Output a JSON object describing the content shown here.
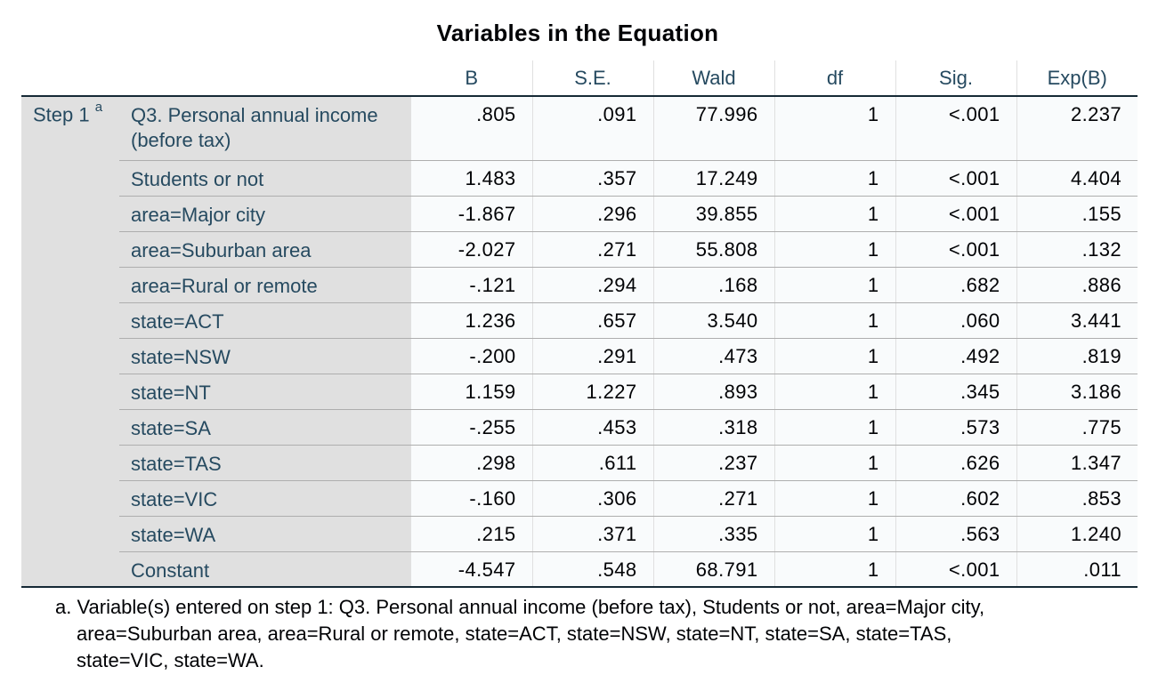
{
  "title": "Variables in the Equation",
  "columns": [
    "B",
    "S.E.",
    "Wald",
    "df",
    "Sig.",
    "Exp(B)"
  ],
  "step_label": "Step 1",
  "step_superscript": "a",
  "rows": [
    {
      "label": "Q3. Personal annual income (before tax)",
      "values": [
        ".805",
        ".091",
        "77.996",
        "1",
        "<.001",
        "2.237"
      ]
    },
    {
      "label": "Students or not",
      "values": [
        "1.483",
        ".357",
        "17.249",
        "1",
        "<.001",
        "4.404"
      ]
    },
    {
      "label": "area=Major city",
      "values": [
        "-1.867",
        ".296",
        "39.855",
        "1",
        "<.001",
        ".155"
      ]
    },
    {
      "label": "area=Suburban area",
      "values": [
        "-2.027",
        ".271",
        "55.808",
        "1",
        "<.001",
        ".132"
      ]
    },
    {
      "label": "area=Rural or remote",
      "values": [
        "-.121",
        ".294",
        ".168",
        "1",
        ".682",
        ".886"
      ]
    },
    {
      "label": "state=ACT",
      "values": [
        "1.236",
        ".657",
        "3.540",
        "1",
        ".060",
        "3.441"
      ]
    },
    {
      "label": "state=NSW",
      "values": [
        "-.200",
        ".291",
        ".473",
        "1",
        ".492",
        ".819"
      ]
    },
    {
      "label": "state=NT",
      "values": [
        "1.159",
        "1.227",
        ".893",
        "1",
        ".345",
        "3.186"
      ]
    },
    {
      "label": "state=SA",
      "values": [
        "-.255",
        ".453",
        ".318",
        "1",
        ".573",
        ".775"
      ]
    },
    {
      "label": "state=TAS",
      "values": [
        ".298",
        ".611",
        ".237",
        "1",
        ".626",
        "1.347"
      ]
    },
    {
      "label": "state=VIC",
      "values": [
        "-.160",
        ".306",
        ".271",
        "1",
        ".602",
        ".853"
      ]
    },
    {
      "label": "state=WA",
      "values": [
        ".215",
        ".371",
        ".335",
        "1",
        ".563",
        "1.240"
      ]
    },
    {
      "label": "Constant",
      "values": [
        "-4.547",
        ".548",
        "68.791",
        "1",
        "<.001",
        ".011"
      ]
    }
  ],
  "footnote": {
    "line1": "a. Variable(s) entered on step 1: Q3. Personal annual income (before tax), Students or not, area=Major city,",
    "line2": "area=Suburban area, area=Rural or remote, state=ACT, state=NSW, state=NT, state=SA, state=TAS,",
    "line3": "state=VIC, state=WA."
  }
}
